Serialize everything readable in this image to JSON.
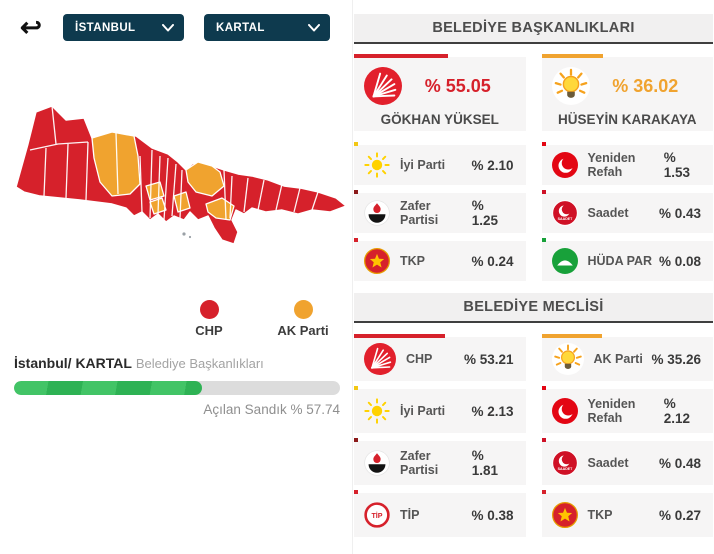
{
  "colors": {
    "chp_red": "#d6212b",
    "akp_orange": "#f0a32f",
    "navy": "#0e3a4e",
    "progress_green": "#3ec460"
  },
  "toolbar": {
    "back_icon": "↩",
    "province": {
      "value": "İSTANBUL"
    },
    "district": {
      "value": "KARTAL"
    }
  },
  "map": {
    "legend": [
      {
        "label": "CHP",
        "color": "#d6212b"
      },
      {
        "label": "AK Parti",
        "color": "#f0a32f"
      }
    ]
  },
  "summary": {
    "location_bold": "İstanbul/ KARTAL",
    "location_rest": "Belediye Başkanlıkları",
    "progress_pct": 57.74,
    "progress_caption": "Açılan Sandık % 57.74"
  },
  "sections": [
    {
      "title": "BELEDİYE BAŞKANLIKLARI",
      "candidates": [
        {
          "name": "GÖKHAN YÜKSEL",
          "icon": "chp",
          "pct": 55.05,
          "pct_label": "% 55.05",
          "color": "#d6212b"
        },
        {
          "name": "HÜSEYİN KARAKAYA",
          "icon": "akp",
          "pct": 36.02,
          "pct_label": "% 36.02",
          "color": "#f0a32f"
        }
      ],
      "rows": [
        {
          "party": "İyi Parti",
          "icon": "iyi",
          "pct": 2.1,
          "pct_label": "% 2.10",
          "color": "#f2c714"
        },
        {
          "party": "Yeniden Refah",
          "icon": "yrp",
          "pct": 1.53,
          "pct_label": "% 1.53",
          "color": "#e30613"
        },
        {
          "party": "Zafer Partisi",
          "icon": "zafer",
          "pct": 1.25,
          "pct_label": "% 1.25",
          "color": "#8b1a1a"
        },
        {
          "party": "Saadet",
          "icon": "saadet",
          "pct": 0.43,
          "pct_label": "% 0.43",
          "color": "#ce1126"
        },
        {
          "party": "TKP",
          "icon": "tkp",
          "pct": 0.24,
          "pct_label": "% 0.24",
          "color": "#d6212b"
        },
        {
          "party": "HÜDA PAR",
          "icon": "huda",
          "pct": 0.08,
          "pct_label": "% 0.08",
          "color": "#18a13a"
        }
      ]
    },
    {
      "title": "BELEDİYE MECLİSİ",
      "rows": [
        {
          "party": "CHP",
          "icon": "chp",
          "pct": 53.21,
          "pct_label": "% 53.21",
          "color": "#d6212b",
          "big": true
        },
        {
          "party": "AK Parti",
          "icon": "akp",
          "pct": 35.26,
          "pct_label": "% 35.26",
          "color": "#f0a32f",
          "big": true
        },
        {
          "party": "İyi Parti",
          "icon": "iyi",
          "pct": 2.13,
          "pct_label": "% 2.13",
          "color": "#f2c714"
        },
        {
          "party": "Yeniden Refah",
          "icon": "yrp",
          "pct": 2.12,
          "pct_label": "% 2.12",
          "color": "#e30613"
        },
        {
          "party": "Zafer Partisi",
          "icon": "zafer",
          "pct": 1.81,
          "pct_label": "% 1.81",
          "color": "#8b1a1a"
        },
        {
          "party": "Saadet",
          "icon": "saadet",
          "pct": 0.48,
          "pct_label": "% 0.48",
          "color": "#ce1126"
        },
        {
          "party": "TİP",
          "icon": "tip",
          "pct": 0.38,
          "pct_label": "% 0.38",
          "color": "#d6212b"
        },
        {
          "party": "TKP",
          "icon": "tkp",
          "pct": 0.27,
          "pct_label": "% 0.27",
          "color": "#d6212b"
        }
      ]
    }
  ]
}
